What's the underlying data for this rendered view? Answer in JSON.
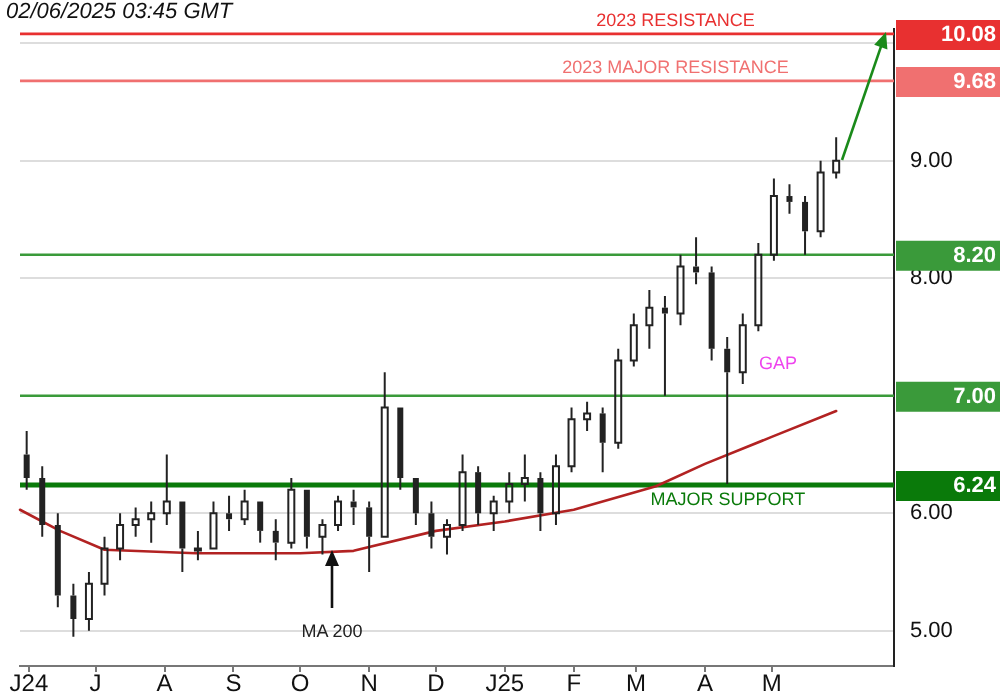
{
  "chart_data": {
    "type": "candlestick",
    "annotations": [
      "02/06/2025 03:45 GMT",
      "GAP",
      {
        "text": "2023 RESISTANCE",
        "y": 10.08
      },
      {
        "text": "2023 MAJOR RESISTANCE",
        "y": 9.68
      },
      {
        "text": "MAJOR SUPPORT",
        "y": 6.24
      }
    ],
    "x": [
      "2024-05-31",
      "2024-06-07",
      "2024-06-14",
      "2024-06-21",
      "2024-06-28",
      "2024-07-05",
      "2024-07-12",
      "2024-07-19",
      "2024-07-26",
      "2024-08-02",
      "2024-08-09",
      "2024-08-16",
      "2024-08-23",
      "2024-08-30",
      "2024-09-06",
      "2024-09-13",
      "2024-09-20",
      "2024-09-27",
      "2024-10-04",
      "2024-10-11",
      "2024-10-18",
      "2024-10-25",
      "2024-11-01",
      "2024-11-08",
      "2024-11-15",
      "2024-11-22",
      "2024-11-29",
      "2024-12-06",
      "2024-12-13",
      "2024-12-20",
      "2024-12-27",
      "2025-01-03",
      "2025-01-10",
      "2025-01-17",
      "2025-01-24",
      "2025-01-31",
      "2025-02-07",
      "2025-02-14",
      "2025-02-21",
      "2025-02-28",
      "2025-03-07",
      "2025-03-14",
      "2025-03-21",
      "2025-03-28",
      "2025-04-04",
      "2025-04-11",
      "2025-04-18",
      "2025-04-25",
      "2025-05-02",
      "2025-05-09",
      "2025-05-16",
      "2025-05-23",
      "2025-05-30"
    ],
    "ohlc": [
      [
        6.5,
        6.7,
        6.2,
        6.3
      ],
      [
        6.3,
        6.4,
        5.8,
        5.9
      ],
      [
        5.9,
        6.0,
        5.2,
        5.3
      ],
      [
        5.3,
        5.4,
        4.95,
        5.1
      ],
      [
        5.1,
        5.5,
        5.0,
        5.4
      ],
      [
        5.4,
        5.8,
        5.3,
        5.7
      ],
      [
        5.7,
        6.0,
        5.6,
        5.9
      ],
      [
        5.9,
        6.05,
        5.8,
        5.95
      ],
      [
        5.95,
        6.1,
        5.75,
        6.0
      ],
      [
        6.0,
        6.5,
        5.9,
        6.1
      ],
      [
        6.1,
        6.1,
        5.5,
        5.7
      ],
      [
        5.7,
        5.85,
        5.6,
        5.7
      ],
      [
        5.7,
        6.1,
        5.7,
        6.0
      ],
      [
        6.0,
        6.15,
        5.85,
        5.95
      ],
      [
        5.95,
        6.2,
        5.9,
        6.1
      ],
      [
        6.1,
        6.1,
        5.75,
        5.85
      ],
      [
        5.85,
        5.95,
        5.6,
        5.75
      ],
      [
        5.75,
        6.3,
        5.7,
        6.2
      ],
      [
        6.2,
        6.2,
        5.7,
        5.8
      ],
      [
        5.8,
        5.95,
        5.65,
        5.9
      ],
      [
        5.9,
        6.15,
        5.85,
        6.1
      ],
      [
        6.1,
        6.2,
        5.9,
        6.05
      ],
      [
        6.05,
        6.1,
        5.5,
        5.8
      ],
      [
        5.8,
        7.2,
        5.8,
        6.9
      ],
      [
        6.9,
        6.9,
        6.2,
        6.3
      ],
      [
        6.3,
        6.3,
        5.9,
        6.0
      ],
      [
        6.0,
        6.1,
        5.7,
        5.8
      ],
      [
        5.8,
        5.95,
        5.65,
        5.9
      ],
      [
        5.9,
        6.5,
        5.85,
        6.35
      ],
      [
        6.35,
        6.4,
        5.9,
        6.0
      ],
      [
        6.0,
        6.15,
        5.85,
        6.1
      ],
      [
        6.1,
        6.35,
        6.0,
        6.25
      ],
      [
        6.25,
        6.5,
        6.1,
        6.3
      ],
      [
        6.3,
        6.35,
        5.85,
        6.0
      ],
      [
        6.0,
        6.5,
        5.9,
        6.4
      ],
      [
        6.4,
        6.9,
        6.35,
        6.8
      ],
      [
        6.8,
        6.95,
        6.7,
        6.85
      ],
      [
        6.85,
        6.9,
        6.35,
        6.6
      ],
      [
        6.6,
        7.4,
        6.55,
        7.3
      ],
      [
        7.3,
        7.7,
        7.25,
        7.6
      ],
      [
        7.6,
        7.9,
        7.4,
        7.75
      ],
      [
        7.75,
        7.85,
        7.0,
        7.7
      ],
      [
        7.7,
        8.2,
        7.6,
        8.1
      ],
      [
        8.1,
        8.35,
        7.95,
        8.05
      ],
      [
        8.05,
        8.1,
        7.3,
        7.4
      ],
      [
        7.4,
        7.5,
        6.25,
        7.2
      ],
      [
        7.2,
        7.7,
        7.1,
        7.6
      ],
      [
        7.6,
        8.3,
        7.55,
        8.2
      ],
      [
        8.2,
        8.85,
        8.15,
        8.7
      ],
      [
        8.7,
        8.8,
        8.55,
        8.65
      ],
      [
        8.65,
        8.7,
        8.2,
        8.4
      ],
      [
        8.4,
        9.0,
        8.35,
        8.9
      ],
      [
        8.9,
        9.2,
        8.85,
        9.0
      ]
    ],
    "color": "#222222",
    "series": [
      {
        "type": "line",
        "name": "MA 200",
        "color": "#b22222",
        "x": [
          "2024-05-28",
          "2024-06-15",
          "2024-07-05",
          "2024-08-15",
          "2024-10-01",
          "2024-10-25",
          "2024-12-01",
          "2025-01-01",
          "2025-02-01",
          "2025-03-10",
          "2025-04-01",
          "2025-05-01",
          "2025-05-30"
        ],
        "values": [
          6.03,
          5.85,
          5.69,
          5.66,
          5.66,
          5.68,
          5.85,
          5.93,
          6.03,
          6.23,
          6.42,
          6.65,
          6.87
        ]
      }
    ],
    "xlim": [
      "2024-05-28",
      "2025-06-25"
    ],
    "xticks": [
      {
        "value": "2024-06-01",
        "label": "J24"
      },
      {
        "value": "2024-07-01",
        "label": "J"
      },
      {
        "value": "2024-08-01",
        "label": "A"
      },
      {
        "value": "2024-09-01",
        "label": "S"
      },
      {
        "value": "2024-10-01",
        "label": "O"
      },
      {
        "value": "2024-11-01",
        "label": "N"
      },
      {
        "value": "2024-12-01",
        "label": "D"
      },
      {
        "value": "2025-01-01",
        "label": "J25"
      },
      {
        "value": "2025-02-01",
        "label": "F"
      },
      {
        "value": "2025-03-01",
        "label": "M"
      },
      {
        "value": "2025-04-01",
        "label": "A"
      },
      {
        "value": "2025-05-01",
        "label": "M"
      }
    ],
    "ylim": [
      4.7,
      10.12
    ],
    "yticks": [
      {
        "value": 5,
        "label": "5.00"
      },
      {
        "value": 6,
        "label": "6.00"
      },
      {
        "value": 7,
        "label": null
      },
      {
        "value": 8,
        "label": "8.00"
      },
      {
        "value": 9,
        "label": "9.00"
      },
      {
        "value": 10,
        "label": null
      }
    ],
    "ref_lines": [
      {
        "axis": "y",
        "value": 10.08,
        "label": "10.08",
        "color": "#e83030"
      },
      {
        "axis": "y",
        "value": 9.68,
        "label": "9.68",
        "color": "#f07070"
      },
      {
        "axis": "y",
        "value": 8.2,
        "label": "8.20",
        "color": "#3a9a3a"
      },
      {
        "axis": "y",
        "value": 7.0,
        "label": "7.00",
        "color": "#3a9a3a"
      },
      {
        "axis": "y",
        "value": 6.24,
        "label": "6.24",
        "color": "#0a7a0a"
      }
    ],
    "grid": "y",
    "legend": false
  }
}
